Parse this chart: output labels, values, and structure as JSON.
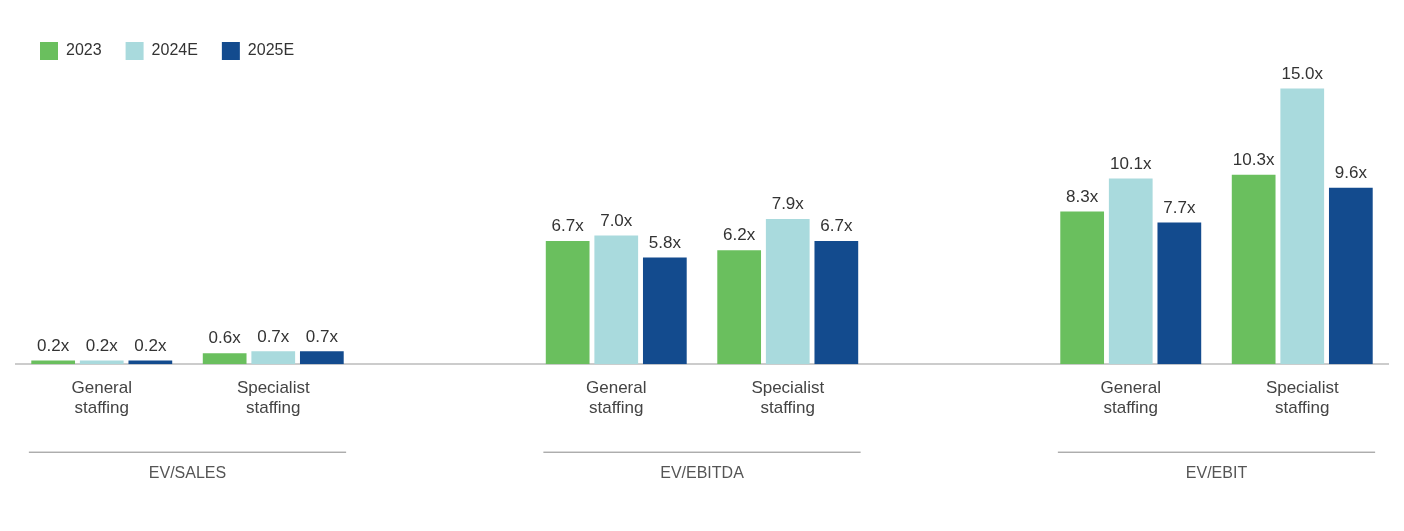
{
  "chart_data": {
    "type": "bar",
    "categories": [
      "General staffing",
      "Specialist staffing",
      null,
      "General staffing",
      "Specialist staffing",
      null,
      "General staffing",
      "Specialist staffing"
    ],
    "series": [
      {
        "name": "2023",
        "color": "#6abf5e",
        "values": [
          0.2,
          0.6,
          null,
          6.7,
          6.2,
          null,
          8.3,
          10.3
        ],
        "value_labels": [
          "0.2x",
          "0.6x",
          null,
          "6.7x",
          "6.2x",
          null,
          "8.3x",
          "10.3x"
        ]
      },
      {
        "name": "2024E",
        "color": "#a9dadd",
        "values": [
          0.2,
          0.7,
          null,
          7.0,
          7.9,
          null,
          10.1,
          15.0
        ],
        "value_labels": [
          "0.2x",
          "0.7x",
          null,
          "7.0x",
          "7.9x",
          null,
          "10.1x",
          "15.0x"
        ]
      },
      {
        "name": "2025E",
        "color": "#134b8e",
        "values": [
          0.2,
          0.7,
          null,
          5.8,
          6.7,
          null,
          7.7,
          9.6
        ],
        "value_labels": [
          "0.2x",
          "0.7x",
          null,
          "5.8x",
          "6.7x",
          null,
          "7.7x",
          "9.6x"
        ]
      }
    ],
    "annotations": [
      "EV/SALES",
      "EV/EBITDA",
      "EV/EBIT"
    ],
    "legend": "top left",
    "grid": false
  }
}
